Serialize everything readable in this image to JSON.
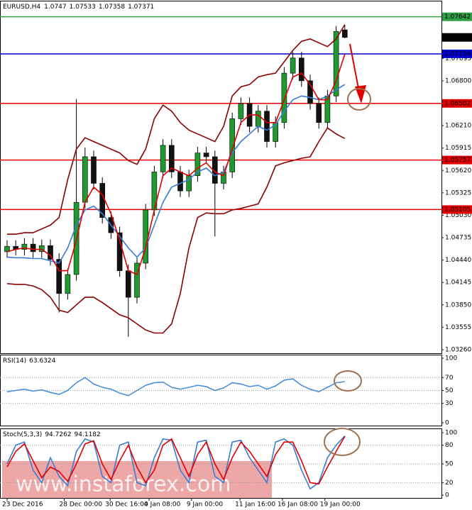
{
  "chart_data": [
    {
      "type": "candlestick",
      "title": "EURUSD,H4",
      "ylim": [
        1.03223,
        1.07835
      ],
      "yticks": [
        {
          "value": 1.0326,
          "label": "1.03260"
        },
        {
          "value": 1.03555,
          "label": "1.03555"
        },
        {
          "value": 1.0385,
          "label": "1.03850"
        },
        {
          "value": 1.04145,
          "label": "1.04145"
        },
        {
          "value": 1.0444,
          "label": "1.04440"
        },
        {
          "value": 1.04735,
          "label": "1.04735"
        },
        {
          "value": 1.0503,
          "label": "1.05030"
        },
        {
          "value": 1.05325,
          "label": "1.05325"
        },
        {
          "value": 1.0562,
          "label": "1.05620"
        },
        {
          "value": 1.05915,
          "label": "1.05915"
        },
        {
          "value": 1.0621,
          "label": "1.06210"
        },
        {
          "value": 1.068,
          "label": "1.06800"
        },
        {
          "value": 1.07095,
          "label": "1.07095"
        }
      ],
      "xticks": [
        {
          "value": 0,
          "label": "23 Dec 2016"
        },
        {
          "value": 6.6,
          "label": "28 Dec 00:00"
        },
        {
          "value": 11.9,
          "label": "30 Dec 16:00"
        },
        {
          "value": 16.4,
          "label": "4 Jan 08:00"
        },
        {
          "value": 21.3,
          "label": "9 Jan 00:00"
        },
        {
          "value": 26.9,
          "label": "11 Jan 16:00"
        },
        {
          "value": 31.8,
          "label": "16 Jan 08:00"
        },
        {
          "value": 36.7,
          "label": "19 Jan 00:00"
        }
      ],
      "up_color": "#1f9a2f",
      "down_color": "#111111",
      "open": [
        1.0455,
        1.0462,
        1.0458,
        1.0465,
        1.0455,
        1.0463,
        1.0445,
        1.04,
        1.0425,
        1.052,
        1.058,
        1.0545,
        1.05,
        1.048,
        1.043,
        1.0395,
        1.044,
        1.051,
        1.056,
        1.0595,
        1.056,
        1.0535,
        1.0555,
        1.0585,
        1.058,
        1.0545,
        1.056,
        1.063,
        1.065,
        1.062,
        1.064,
        1.06,
        1.0625,
        1.069,
        1.071,
        1.068,
        1.065,
        1.0625,
        1.066,
        1.0747
      ],
      "high": [
        1.047,
        1.047,
        1.0473,
        1.0473,
        1.0471,
        1.0471,
        1.0453,
        1.0433,
        1.0656,
        1.0592,
        1.0588,
        1.0553,
        1.0508,
        1.0488,
        1.0438,
        1.0448,
        1.0518,
        1.0568,
        1.0603,
        1.0603,
        1.0568,
        1.0563,
        1.0593,
        1.0593,
        1.0588,
        1.0568,
        1.0638,
        1.0658,
        1.0658,
        1.0648,
        1.0648,
        1.0633,
        1.0698,
        1.0718,
        1.0718,
        1.0688,
        1.0658,
        1.0668,
        1.0752,
        1.07533
      ],
      "low": [
        1.0447,
        1.045,
        1.045,
        1.0447,
        1.0447,
        1.0437,
        1.0375,
        1.0392,
        1.0417,
        1.0512,
        1.0537,
        1.0492,
        1.0472,
        1.0422,
        1.0343,
        1.0387,
        1.0432,
        1.0502,
        1.0552,
        1.0552,
        1.0527,
        1.0527,
        1.0547,
        1.0572,
        1.0475,
        1.0537,
        1.0552,
        1.0622,
        1.0612,
        1.0612,
        1.0592,
        1.0592,
        1.0617,
        1.0682,
        1.0672,
        1.0642,
        1.0617,
        1.0617,
        1.0652,
        1.07358
      ],
      "close": [
        1.0462,
        1.0458,
        1.0465,
        1.0455,
        1.0463,
        1.0445,
        1.04,
        1.0425,
        1.052,
        1.058,
        1.0545,
        1.05,
        1.048,
        1.043,
        1.0395,
        1.044,
        1.051,
        1.056,
        1.0595,
        1.056,
        1.0535,
        1.0555,
        1.0585,
        1.058,
        1.0545,
        1.056,
        1.063,
        1.065,
        1.062,
        1.064,
        1.06,
        1.0625,
        1.069,
        1.071,
        1.068,
        1.065,
        1.0625,
        1.066,
        1.0745,
        1.07371
      ],
      "series": [
        {
          "color": "#8b0000",
          "values": [
            1.0478,
            1.0478,
            1.048,
            1.048,
            1.0485,
            1.049,
            1.05,
            1.055,
            1.059,
            1.0605,
            1.06,
            1.0595,
            1.059,
            1.0585,
            1.0575,
            1.057,
            1.059,
            1.063,
            1.0648,
            1.064,
            1.0625,
            1.0615,
            1.061,
            1.0605,
            1.06,
            1.062,
            1.066,
            1.0672,
            1.0675,
            1.0685,
            1.0688,
            1.069,
            1.0705,
            1.072,
            1.0732,
            1.0735,
            1.073,
            1.0725,
            1.0735,
            1.0754
          ]
        },
        {
          "color": "#8b0000",
          "values": [
            1.0413,
            1.0412,
            1.0412,
            1.041,
            1.0405,
            1.0395,
            1.0378,
            1.0375,
            1.0385,
            1.0395,
            1.0395,
            1.0388,
            1.038,
            1.0372,
            1.0368,
            1.036,
            1.0352,
            1.0348,
            1.0348,
            1.036,
            1.04,
            1.046,
            1.05,
            1.0506,
            1.0505,
            1.0505,
            1.051,
            1.0512,
            1.0515,
            1.0518,
            1.054,
            1.0568,
            1.0572,
            1.0575,
            1.0578,
            1.058,
            1.06,
            1.0618,
            1.061,
            1.0604
          ]
        },
        {
          "color": "#3a7bd5",
          "values": [
            1.0448,
            1.0447,
            1.0447,
            1.0446,
            1.0446,
            1.0443,
            1.044,
            1.046,
            1.049,
            1.051,
            1.0515,
            1.0505,
            1.049,
            1.0475,
            1.046,
            1.0448,
            1.046,
            1.049,
            1.052,
            1.054,
            1.0545,
            1.055,
            1.056,
            1.0565,
            1.0555,
            1.056,
            1.0585,
            1.06,
            1.061,
            1.062,
            1.0615,
            1.0622,
            1.064,
            1.0655,
            1.066,
            1.0658,
            1.0655,
            1.066,
            1.0668,
            1.0675
          ]
        },
        {
          "color": "#e00000",
          "values": [
            1.0455,
            1.0458,
            1.046,
            1.0458,
            1.0458,
            1.045,
            1.043,
            1.043,
            1.047,
            1.052,
            1.054,
            1.053,
            1.0505,
            1.047,
            1.043,
            1.0425,
            1.046,
            1.051,
            1.0555,
            1.0565,
            1.056,
            1.0555,
            1.0565,
            1.0572,
            1.056,
            1.0555,
            1.059,
            1.0625,
            1.0635,
            1.0635,
            1.0625,
            1.0625,
            1.0655,
            1.0685,
            1.069,
            1.0675,
            1.0655,
            1.0655,
            1.068,
            1.0715
          ]
        }
      ],
      "levels": [
        {
          "value": 1.07642,
          "color": "#2e9e44"
        },
        {
          "value": 1.07154,
          "color": "#0000cc"
        },
        {
          "value": 1.06502,
          "color": "#e00000"
        },
        {
          "value": 1.05757,
          "color": "#e00000"
        },
        {
          "value": 1.05105,
          "color": "#e00000"
        }
      ],
      "watermark": "www.instaforex.com"
    },
    {
      "type": "line",
      "title": "RSI(14)",
      "ylim": [
        0,
        100
      ],
      "yticks": [
        0,
        30,
        50,
        70,
        100
      ],
      "grid": true,
      "series": [
        {
          "color": "#4a90d9",
          "values": [
            48,
            50,
            52,
            49,
            51,
            47,
            44,
            50,
            62,
            70,
            60,
            55,
            52,
            46,
            42,
            50,
            58,
            62,
            63,
            55,
            52,
            55,
            58,
            56,
            50,
            54,
            62,
            60,
            56,
            58,
            52,
            57,
            66,
            68,
            58,
            52,
            48,
            55,
            62,
            63.6324
          ]
        }
      ]
    },
    {
      "type": "line",
      "title": "Stoch(5,3,3)",
      "ylim": [
        0,
        100
      ],
      "yticks": [
        0,
        20,
        50,
        80,
        100
      ],
      "grid": true,
      "series": [
        {
          "color": "#3a7bd5",
          "values": [
            50,
            80,
            85,
            40,
            20,
            60,
            30,
            15,
            70,
            90,
            85,
            30,
            20,
            80,
            85,
            20,
            15,
            60,
            90,
            88,
            40,
            20,
            85,
            88,
            30,
            20,
            85,
            88,
            60,
            40,
            20,
            85,
            90,
            80,
            40,
            10,
            20,
            60,
            80,
            94.7262
          ]
        },
        {
          "color": "#e00000",
          "values": [
            45,
            70,
            82,
            55,
            28,
            45,
            38,
            22,
            50,
            82,
            87,
            50,
            25,
            55,
            80,
            45,
            20,
            40,
            80,
            90,
            60,
            30,
            65,
            85,
            50,
            25,
            60,
            85,
            70,
            50,
            30,
            65,
            85,
            85,
            55,
            20,
            18,
            45,
            70,
            94.1182
          ]
        }
      ]
    }
  ]
}
